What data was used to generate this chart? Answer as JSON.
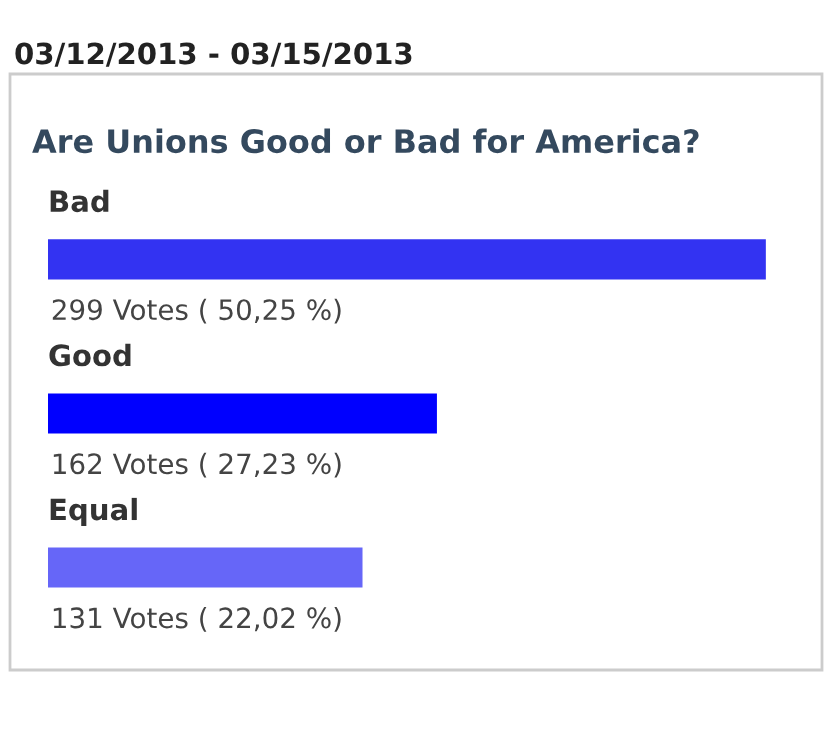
{
  "chart_data": {
    "type": "bar",
    "orientation": "horizontal",
    "title": "03/12/2013 - 03/15/2013",
    "subtitle": "Are Unions Good or Bad for America?",
    "categories": [
      "Bad",
      "Good",
      "Equal"
    ],
    "values": [
      299,
      162,
      131
    ],
    "colors": [
      "#3333f2",
      "#0000ff",
      "#6666f8"
    ],
    "value_labels": [
      "299 Votes ( 50,25 %)",
      "162 Votes ( 27,23 %)",
      "131 Votes ( 22,02 %)"
    ]
  }
}
